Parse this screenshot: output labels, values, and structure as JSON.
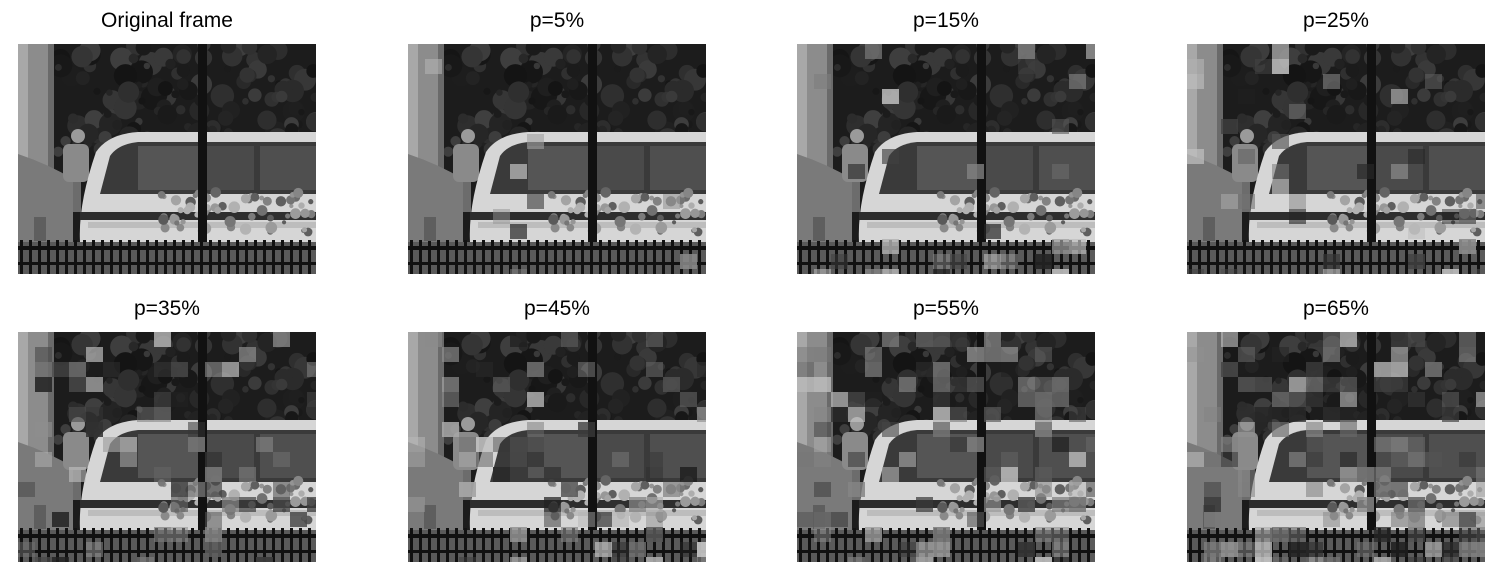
{
  "panels": [
    {
      "title": "Original frame",
      "loss": 0
    },
    {
      "title": "p=5%",
      "loss": 5
    },
    {
      "title": "p=15%",
      "loss": 15
    },
    {
      "title": "p=25%",
      "loss": 25
    },
    {
      "title": "p=35%",
      "loss": 35
    },
    {
      "title": "p=45%",
      "loss": 45
    },
    {
      "title": "p=55%",
      "loss": 55
    },
    {
      "title": "p=65%",
      "loss": 65
    }
  ]
}
